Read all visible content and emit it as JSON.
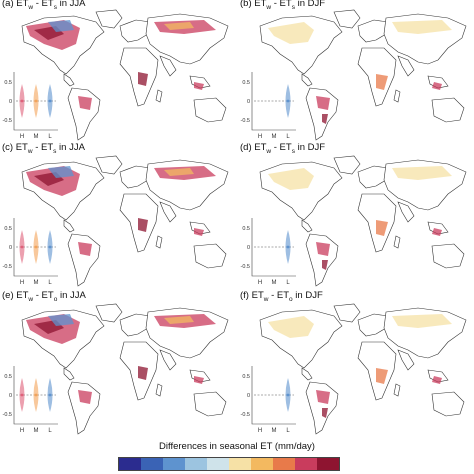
{
  "panels": [
    {
      "id": "a",
      "title_prefix": "(a) ET",
      "sub1": "w",
      "dash": " - ET",
      "sub2": "s",
      "suffix": " in JJA",
      "season": "JJA",
      "inset_kind": "triple"
    },
    {
      "id": "b",
      "title_prefix": "(b) ET",
      "sub1": "w",
      "dash": " - ET",
      "sub2": "s",
      "suffix": " in DJF",
      "season": "DJF",
      "inset_kind": "single"
    },
    {
      "id": "c",
      "title_prefix": "(c) ET",
      "sub1": "w",
      "dash": " - ET",
      "sub2": "s",
      "suffix": " in JJA",
      "season": "JJA",
      "inset_kind": "triple"
    },
    {
      "id": "d",
      "title_prefix": "(d) ET",
      "sub1": "w",
      "dash": " - ET",
      "sub2": "s",
      "suffix": " in DJF",
      "season": "DJF",
      "inset_kind": "single"
    },
    {
      "id": "e",
      "title_prefix": "(e) ET",
      "sub1": "w",
      "dash": " - ET",
      "sub2": "o",
      "suffix": " in JJA",
      "season": "JJA",
      "inset_kind": "triple"
    },
    {
      "id": "f",
      "title_prefix": "(f) ET",
      "sub1": "w",
      "dash": " - ET",
      "sub2": "o",
      "suffix": " in DJF",
      "season": "DJF",
      "inset_kind": "single"
    }
  ],
  "inset": {
    "ytick_labels": [
      "0.5",
      "0",
      "-0.5"
    ],
    "xtick_labels": [
      "H",
      "M",
      "L"
    ]
  },
  "colorbar": {
    "title": "Differences in seasonal ET (mm/day)",
    "colors": [
      "#2b2c8f",
      "#3a63b5",
      "#5e93cf",
      "#9cc4e0",
      "#cfe3ea",
      "#f6e1a6",
      "#f3b960",
      "#e87a4a",
      "#c93c5d",
      "#8e1430"
    ]
  }
}
